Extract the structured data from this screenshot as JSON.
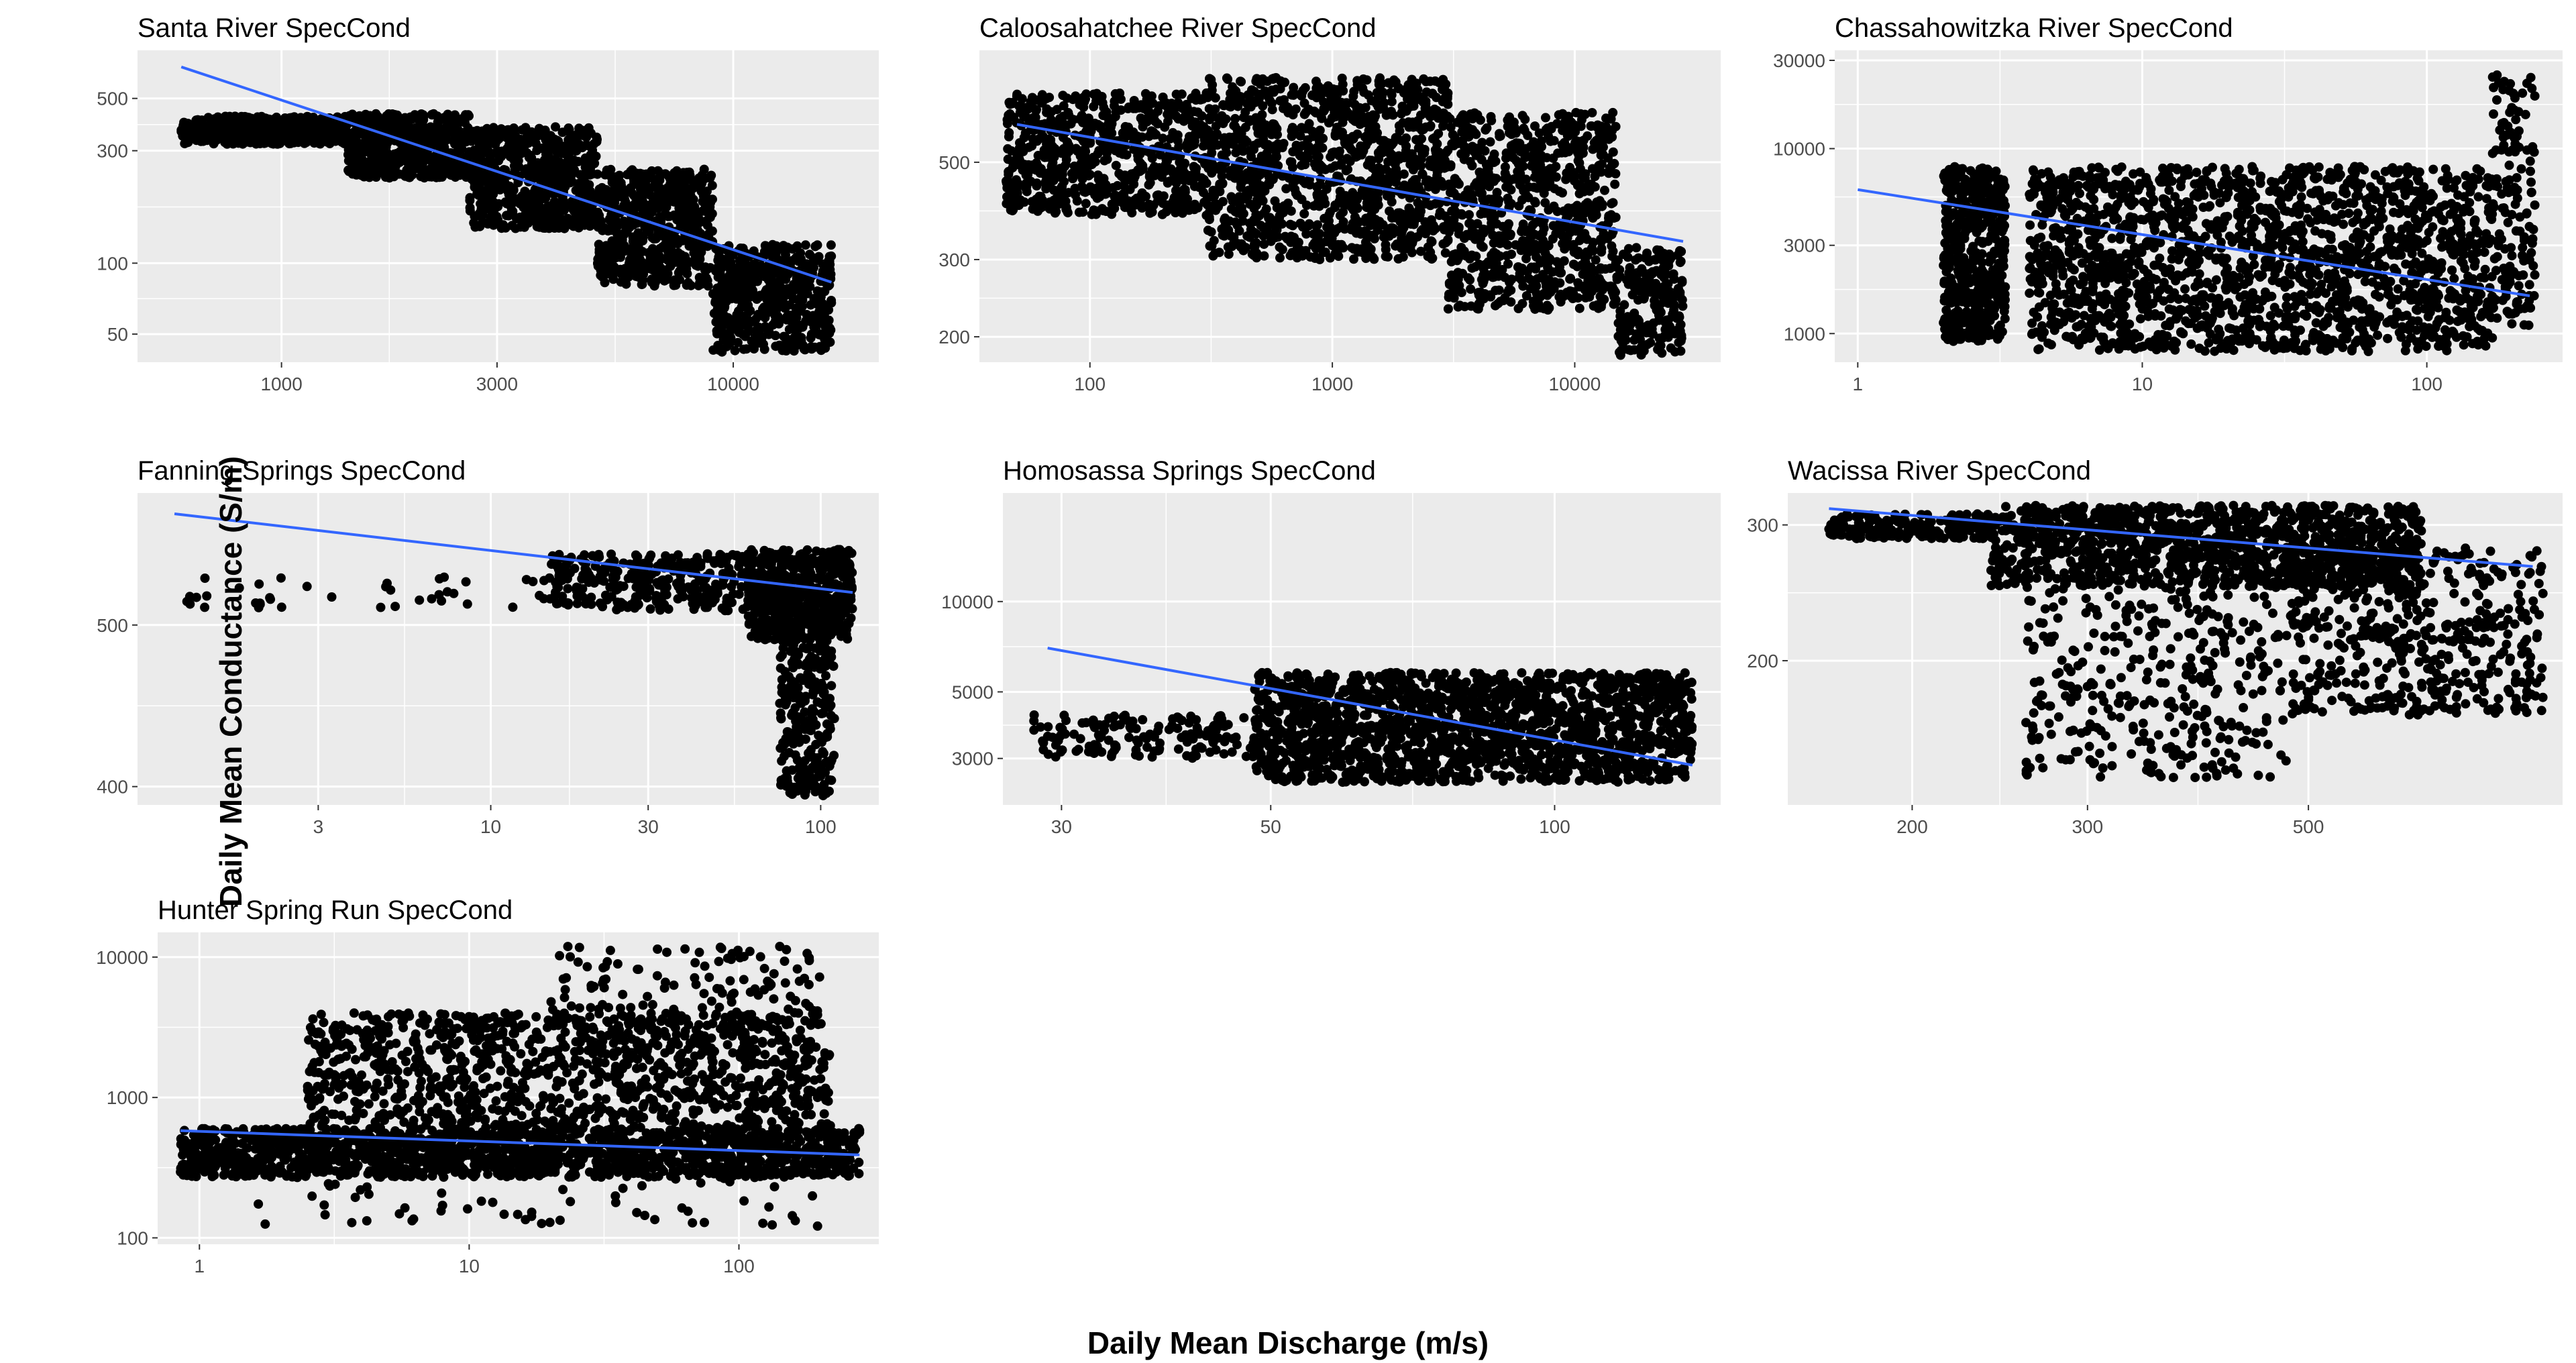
{
  "figure": {
    "ylabel": "Daily Mean Conductance (S/m)",
    "xlabel": "Daily Mean Discharge (m/s)",
    "panel_bg": "#ebebeb",
    "grid_color": "#ffffff",
    "point_color": "#000000",
    "fit_color": "#3366ff"
  },
  "chart_data": [
    {
      "type": "scatter",
      "title": "Santa River SpecCond",
      "x_scale": "log",
      "y_scale": "log",
      "xlim": [
        480,
        21000
      ],
      "ylim": [
        38,
        800
      ],
      "x_ticks": [
        1000,
        3000,
        10000
      ],
      "x_tick_labels": [
        "1000",
        "3000",
        "10000"
      ],
      "y_ticks": [
        50,
        100,
        300,
        500
      ],
      "y_tick_labels": [
        "50",
        "100",
        "300",
        "500"
      ],
      "trend": {
        "x": [
          600,
          16500
        ],
        "y": [
          680,
          83
        ]
      },
      "point_bands": [
        {
          "xmin": 600,
          "xmax": 1400,
          "ymin": 320,
          "ymax": 420,
          "n": 500
        },
        {
          "xmin": 1400,
          "xmax": 2600,
          "ymin": 230,
          "ymax": 430,
          "n": 500
        },
        {
          "xmin": 2600,
          "xmax": 5000,
          "ymin": 140,
          "ymax": 380,
          "n": 600
        },
        {
          "xmin": 5000,
          "xmax": 9000,
          "ymin": 80,
          "ymax": 250,
          "n": 600
        },
        {
          "xmin": 9000,
          "xmax": 16500,
          "ymin": 42,
          "ymax": 120,
          "n": 500
        }
      ]
    },
    {
      "type": "scatter",
      "title": "Caloosahatchee River SpecCond",
      "x_scale": "log",
      "y_scale": "log",
      "xlim": [
        35,
        40000
      ],
      "ylim": [
        175,
        900
      ],
      "x_ticks": [
        100,
        1000,
        10000
      ],
      "x_tick_labels": [
        "100",
        "1000",
        "10000"
      ],
      "y_ticks": [
        200,
        300,
        500
      ],
      "y_tick_labels": [
        "200",
        "300",
        "500"
      ],
      "trend": {
        "x": [
          50,
          28000
        ],
        "y": [
          610,
          330
        ]
      },
      "point_bands": [
        {
          "xmin": 45,
          "xmax": 300,
          "ymin": 380,
          "ymax": 720,
          "n": 700
        },
        {
          "xmin": 300,
          "xmax": 3000,
          "ymin": 300,
          "ymax": 780,
          "n": 1100
        },
        {
          "xmin": 3000,
          "xmax": 15000,
          "ymin": 230,
          "ymax": 650,
          "n": 800
        },
        {
          "xmin": 15000,
          "xmax": 28000,
          "ymin": 180,
          "ymax": 320,
          "n": 200
        }
      ]
    },
    {
      "type": "scatter",
      "title": "Chassahowitzka River SpecCond",
      "x_scale": "log",
      "y_scale": "log",
      "xlim": [
        0.83,
        300
      ],
      "ylim": [
        700,
        34000
      ],
      "x_ticks": [
        1,
        10,
        100
      ],
      "x_tick_labels": [
        "1",
        "10",
        "100"
      ],
      "y_ticks": [
        1000,
        3000,
        10000,
        30000
      ],
      "y_tick_labels": [
        "1000",
        "3000",
        "10000",
        "30000"
      ],
      "trend": {
        "x": [
          1,
          230
        ],
        "y": [
          6000,
          1600
        ]
      },
      "point_bands": [
        {
          "xmin": 2.0,
          "xmax": 3.3,
          "ymin": 900,
          "ymax": 8000,
          "n": 500
        },
        {
          "xmin": 4.0,
          "xmax": 170,
          "ymin": 800,
          "ymax": 8000,
          "n": 1800
        },
        {
          "xmin": 170,
          "xmax": 240,
          "ymin": 1100,
          "ymax": 25000,
          "n": 150
        }
      ]
    },
    {
      "type": "scatter",
      "title": "Fanning Springs SpecCond",
      "x_scale": "log",
      "y_scale": "log",
      "xlim": [
        0.85,
        150
      ],
      "ylim": [
        390,
        600
      ],
      "x_ticks": [
        3,
        10,
        30,
        100
      ],
      "x_tick_labels": [
        "3",
        "10",
        "30",
        "100"
      ],
      "y_ticks": [
        400,
        500
      ],
      "y_tick_labels": [
        "400",
        "500"
      ],
      "trend": {
        "x": [
          1.1,
          125
        ],
        "y": [
          583,
          523
        ]
      },
      "point_bands": [
        {
          "xmin": 1.0,
          "xmax": 15,
          "ymin": 512,
          "ymax": 535,
          "n": 40
        },
        {
          "xmin": 15,
          "xmax": 60,
          "ymin": 510,
          "ymax": 552,
          "n": 300
        },
        {
          "xmin": 60,
          "xmax": 125,
          "ymin": 490,
          "ymax": 555,
          "n": 600
        },
        {
          "xmin": 75,
          "xmax": 110,
          "ymin": 395,
          "ymax": 490,
          "n": 250
        }
      ]
    },
    {
      "type": "scatter",
      "title": "Homosassa Springs SpecCond",
      "x_scale": "log",
      "y_scale": "log",
      "xlim": [
        26,
        150
      ],
      "ylim": [
        2100,
        23000
      ],
      "x_ticks": [
        30,
        50,
        100
      ],
      "x_tick_labels": [
        "30",
        "50",
        "100"
      ],
      "y_ticks": [
        3000,
        5000,
        10000
      ],
      "y_tick_labels": [
        "3000",
        "5000",
        "10000"
      ],
      "trend": {
        "x": [
          29,
          140
        ],
        "y": [
          7000,
          2850
        ]
      },
      "point_bands": [
        {
          "xmin": 28,
          "xmax": 48,
          "ymin": 3000,
          "ymax": 4200,
          "n": 150
        },
        {
          "xmin": 48,
          "xmax": 140,
          "ymin": 2500,
          "ymax": 5800,
          "n": 1700
        }
      ]
    },
    {
      "type": "scatter",
      "title": "Wacissa River SpecCond",
      "x_scale": "log",
      "y_scale": "log",
      "xlim": [
        150,
        900
      ],
      "ylim": [
        130,
        330
      ],
      "x_ticks": [
        200,
        300,
        500
      ],
      "x_tick_labels": [
        "200",
        "300",
        "500"
      ],
      "y_ticks": [
        200,
        300
      ],
      "y_tick_labels": [
        "200",
        "300"
      ],
      "trend": {
        "x": [
          165,
          840
        ],
        "y": [
          315,
          265
        ]
      },
      "point_bands": [
        {
          "xmin": 165,
          "xmax": 240,
          "ymin": 288,
          "ymax": 310,
          "n": 200
        },
        {
          "xmin": 240,
          "xmax": 650,
          "ymin": 250,
          "ymax": 318,
          "n": 1200
        },
        {
          "xmin": 260,
          "xmax": 480,
          "ymin": 140,
          "ymax": 250,
          "n": 350
        },
        {
          "xmin": 480,
          "xmax": 860,
          "ymin": 170,
          "ymax": 280,
          "n": 500
        }
      ]
    },
    {
      "type": "scatter",
      "title": "Hunter Spring Run SpecCond",
      "x_scale": "log",
      "y_scale": "log",
      "xlim": [
        0.7,
        330
      ],
      "ylim": [
        90,
        15000
      ],
      "x_ticks": [
        1,
        10,
        100
      ],
      "x_tick_labels": [
        "1",
        "10",
        "100"
      ],
      "y_ticks": [
        100,
        1000,
        10000
      ],
      "y_tick_labels": [
        "100",
        "1000",
        "10000"
      ],
      "trend": {
        "x": [
          0.85,
          280
        ],
        "y": [
          580,
          390
        ]
      },
      "point_bands": [
        {
          "xmin": 0.85,
          "xmax": 280,
          "ymin": 270,
          "ymax": 600,
          "n": 1600
        },
        {
          "xmin": 2.5,
          "xmax": 220,
          "ymin": 600,
          "ymax": 4000,
          "n": 1100
        },
        {
          "xmin": 20,
          "xmax": 200,
          "ymin": 3000,
          "ymax": 12000,
          "n": 150
        },
        {
          "xmin": 1.5,
          "xmax": 200,
          "ymin": 120,
          "ymax": 270,
          "n": 60
        }
      ]
    }
  ]
}
